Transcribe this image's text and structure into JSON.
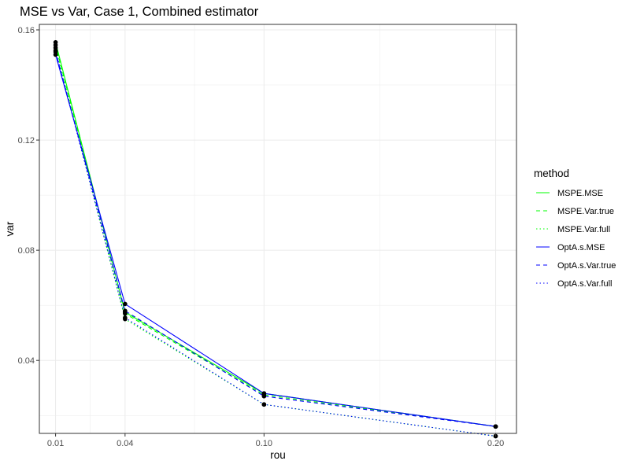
{
  "chart_data": {
    "type": "line",
    "title": "MSE vs Var, Case 1, Combined estimator",
    "xlabel": "rou",
    "ylabel": "var",
    "x": [
      0.01,
      0.04,
      0.1,
      0.2
    ],
    "x_ticks": [
      0.01,
      0.04,
      0.1,
      0.2
    ],
    "x_tick_labels": [
      "0.01",
      "0.04",
      "0.10",
      "0.20"
    ],
    "y_ticks": [
      0.04,
      0.08,
      0.12,
      0.16
    ],
    "y_tick_labels": [
      "0.04",
      "0.08",
      "0.12",
      "0.16"
    ],
    "xlim": [
      0.003,
      0.209
    ],
    "ylim": [
      0.0135,
      0.162
    ],
    "grid": true,
    "legend_title": "method",
    "legend_position": "right",
    "series": [
      {
        "name": "MSPE.MSE",
        "color": "#00ff00",
        "dash": "solid",
        "values": [
          0.1555,
          0.0575,
          0.028,
          0.016
        ]
      },
      {
        "name": "MSPE.Var.true",
        "color": "#00ff00",
        "dash": "dashed",
        "values": [
          0.1545,
          0.057,
          0.0275,
          0.016
        ]
      },
      {
        "name": "MSPE.Var.full",
        "color": "#00ff00",
        "dash": "dotted",
        "values": [
          0.1535,
          0.055,
          0.024,
          0.0125
        ]
      },
      {
        "name": "OptA.s.MSE",
        "color": "#0000ff",
        "dash": "solid",
        "values": [
          0.151,
          0.0605,
          0.028,
          0.016
        ]
      },
      {
        "name": "OptA.s.Var.true",
        "color": "#0000ff",
        "dash": "dashed",
        "values": [
          0.152,
          0.058,
          0.027,
          0.016
        ]
      },
      {
        "name": "OptA.s.Var.full",
        "color": "#0000ff",
        "dash": "dotted",
        "values": [
          0.1525,
          0.0555,
          0.024,
          0.0125
        ]
      }
    ]
  }
}
